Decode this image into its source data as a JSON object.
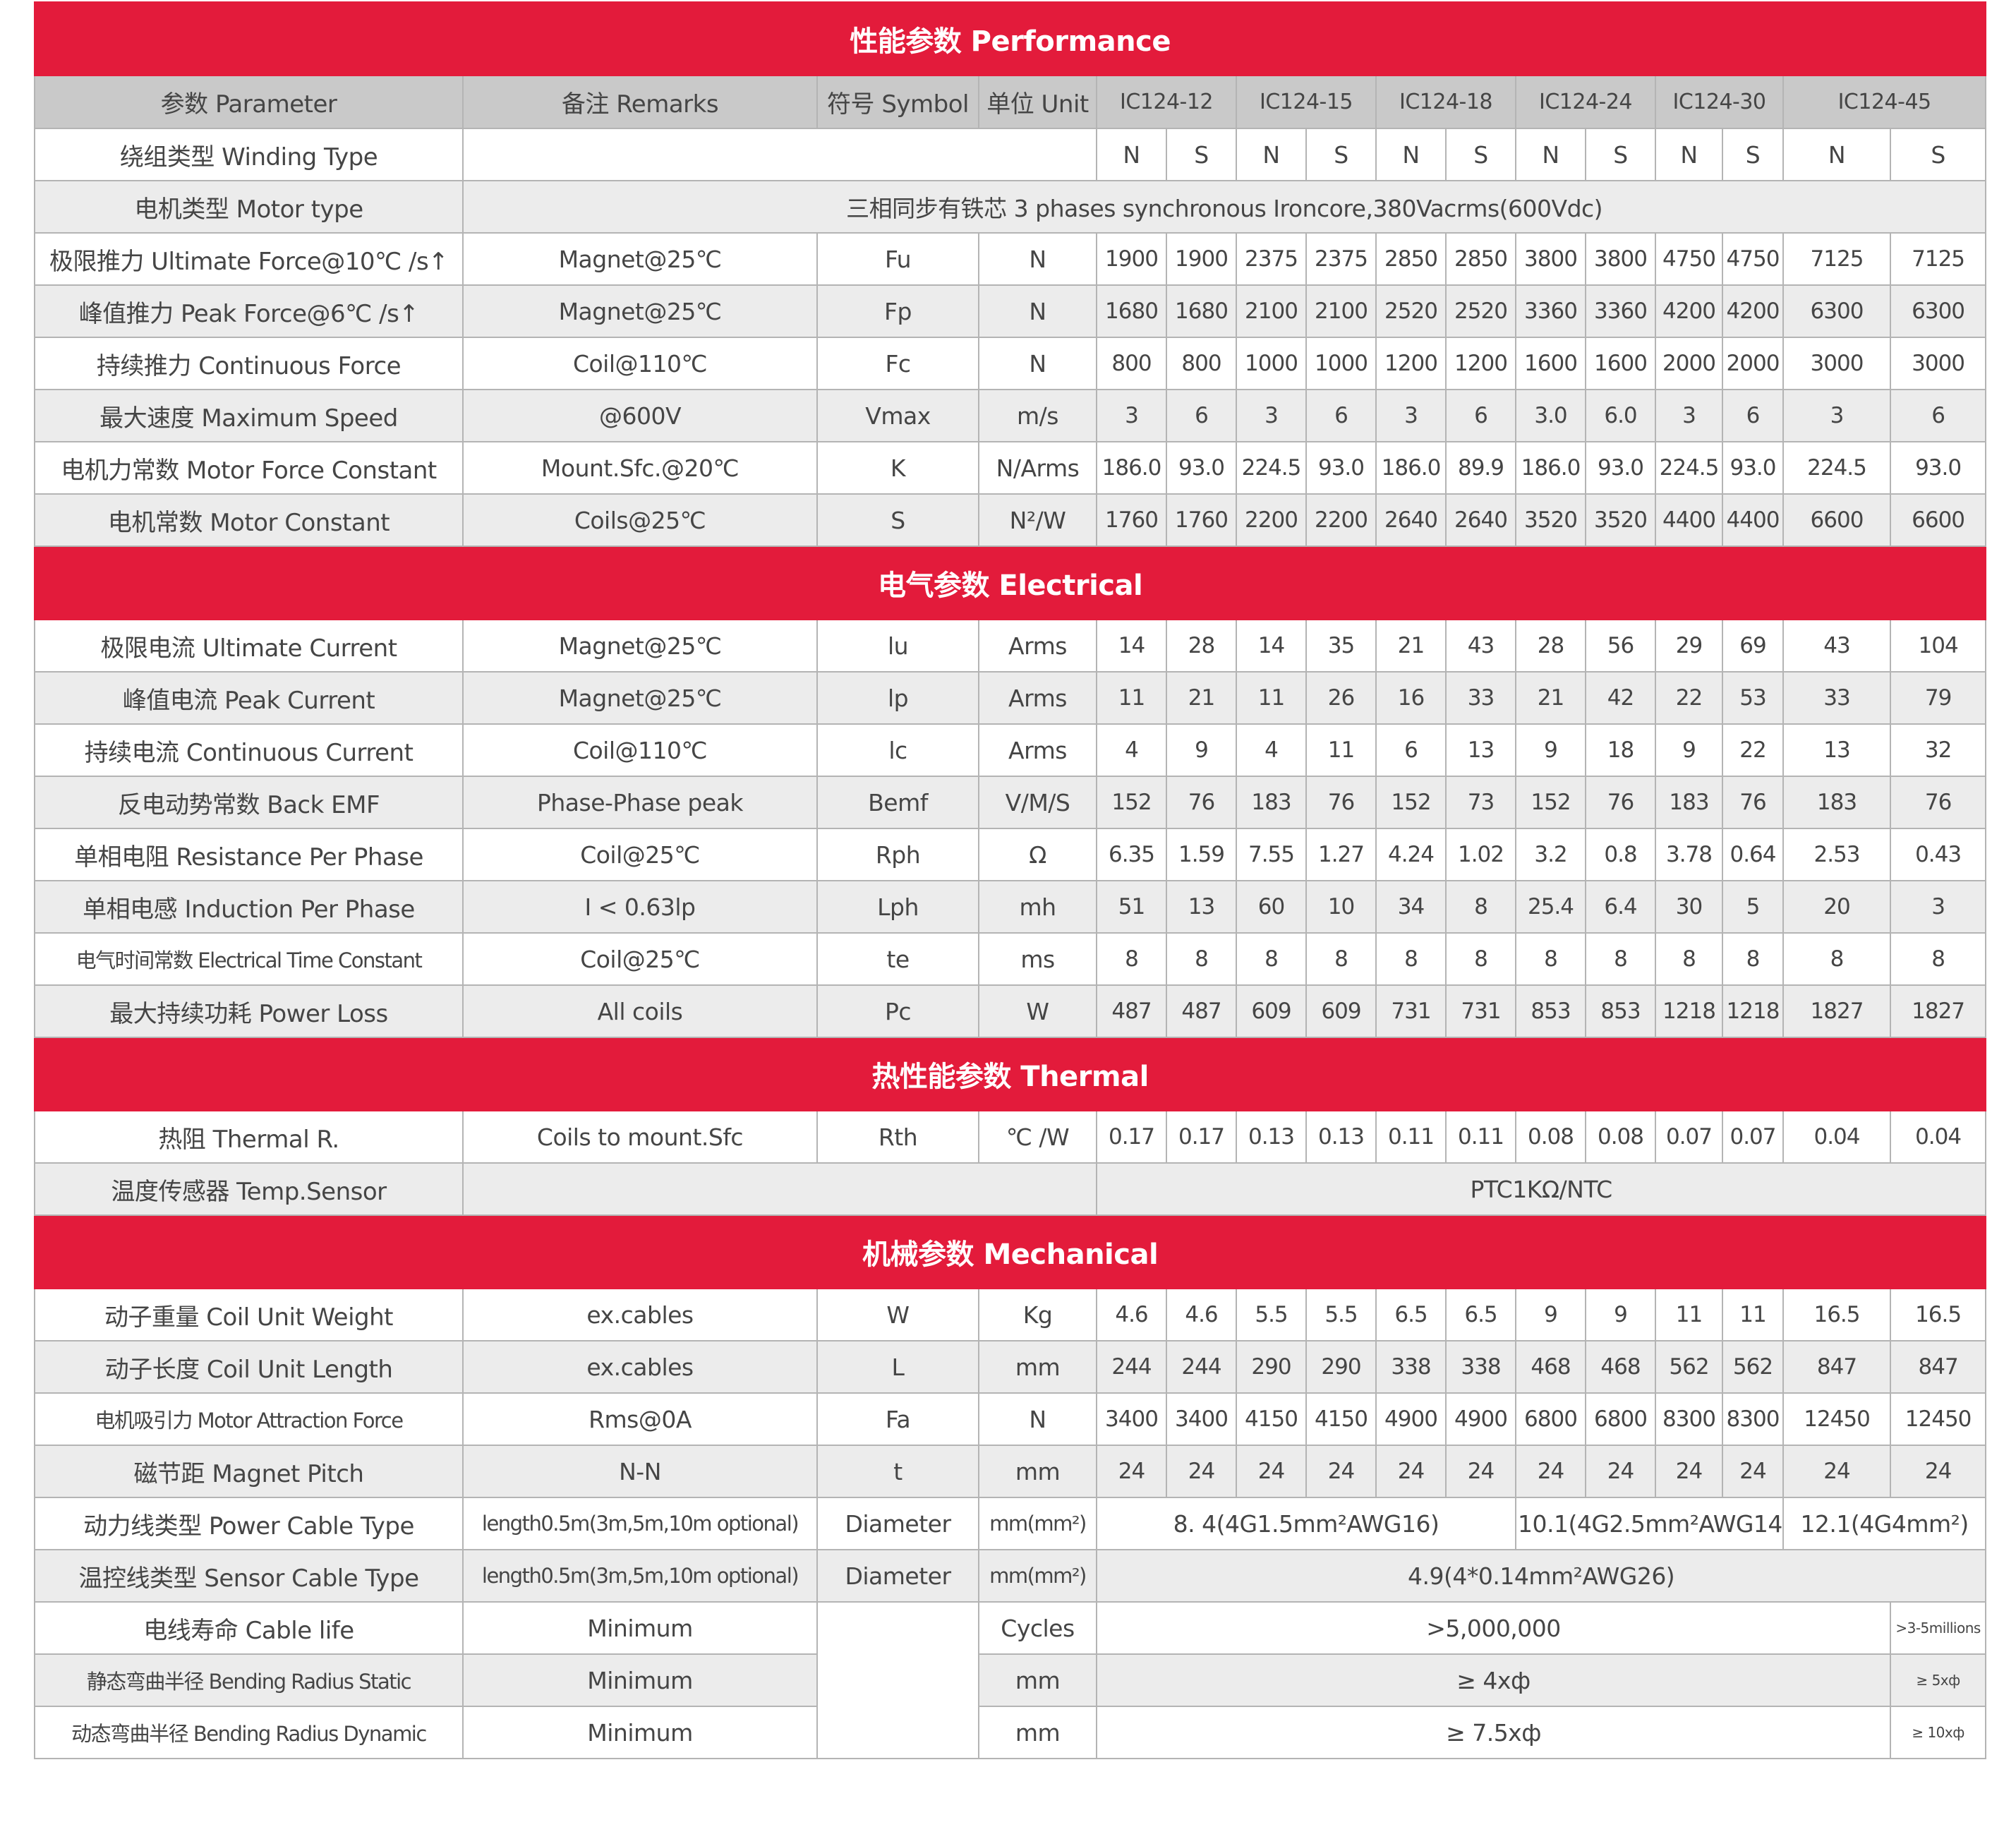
{
  "colors": {
    "section_bar": "#e31b3b",
    "header_bg": "#c9c9c9",
    "stripe_bg": "#ececec",
    "text": "#454545"
  },
  "header": {
    "labels": [
      "参数 Parameter",
      "备注 Remarks",
      "符号 Symbol",
      "单位 Unit"
    ],
    "models": [
      "IC124-12",
      "IC124-15",
      "IC124-18",
      "IC124-24",
      "IC124-30",
      "IC124-45"
    ]
  },
  "sections": [
    {
      "title": "性能参数 Performance",
      "rows": [
        [
          "绕组类型 Winding Type",
          "",
          "N",
          "S",
          "N",
          "S",
          "N",
          "S",
          "N",
          "S",
          "N",
          "S",
          "N",
          "S"
        ],
        [
          "电机类型 Motor type",
          "三相同步有铁芯 3 phases synchronous Ironcore,380Vacrms(600Vdc)"
        ],
        [
          "极限推力 Ultimate Force@10℃ /s↑",
          "Magnet@25℃",
          "Fu",
          "N",
          "1900",
          "1900",
          "2375",
          "2375",
          "2850",
          "2850",
          "3800",
          "3800",
          "4750",
          "4750",
          "7125",
          "7125"
        ],
        [
          "峰值推力 Peak Force@6℃ /s↑",
          "Magnet@25℃",
          "Fp",
          "N",
          "1680",
          "1680",
          "2100",
          "2100",
          "2520",
          "2520",
          "3360",
          "3360",
          "4200",
          "4200",
          "6300",
          "6300"
        ],
        [
          "持续推力 Continuous Force",
          "Coil@110℃",
          "Fc",
          "N",
          "800",
          "800",
          "1000",
          "1000",
          "1200",
          "1200",
          "1600",
          "1600",
          "2000",
          "2000",
          "3000",
          "3000"
        ],
        [
          "最大速度 Maximum Speed",
          "@600V",
          "Vmax",
          "m/s",
          "3",
          "6",
          "3",
          "6",
          "3",
          "6",
          "3.0",
          "6.0",
          "3",
          "6",
          "3",
          "6"
        ],
        [
          "电机力常数 Motor Force Constant",
          "Mount.Sfc.@20℃",
          "K",
          "N/Arms",
          "186.0",
          "93.0",
          "224.5",
          "93.0",
          "186.0",
          "89.9",
          "186.0",
          "93.0",
          "224.5",
          "93.0",
          "224.5",
          "93.0"
        ],
        [
          "电机常数 Motor Constant",
          "Coils@25℃",
          "S",
          "N²/W",
          "1760",
          "1760",
          "2200",
          "2200",
          "2640",
          "2640",
          "3520",
          "3520",
          "4400",
          "4400",
          "6600",
          "6600"
        ]
      ]
    },
    {
      "title": "电气参数 Electrical",
      "rows": [
        [
          "极限电流 Ultimate Current",
          "Magnet@25℃",
          "lu",
          "Arms",
          "14",
          "28",
          "14",
          "35",
          "21",
          "43",
          "28",
          "56",
          "29",
          "69",
          "43",
          "104"
        ],
        [
          "峰值电流 Peak Current",
          "Magnet@25℃",
          "lp",
          "Arms",
          "11",
          "21",
          "11",
          "26",
          "16",
          "33",
          "21",
          "42",
          "22",
          "53",
          "33",
          "79"
        ],
        [
          "持续电流 Continuous Current",
          "Coil@110℃",
          "lc",
          "Arms",
          "4",
          "9",
          "4",
          "11",
          "6",
          "13",
          "9",
          "18",
          "9",
          "22",
          "13",
          "32"
        ],
        [
          "反电动势常数 Back EMF",
          "Phase-Phase peak",
          "Bemf",
          "V/M/S",
          "152",
          "76",
          "183",
          "76",
          "152",
          "73",
          "152",
          "76",
          "183",
          "76",
          "183",
          "76"
        ],
        [
          "单相电阻 Resistance Per Phase",
          "Coil@25℃",
          "Rph",
          "Ω",
          "6.35",
          "1.59",
          "7.55",
          "1.27",
          "4.24",
          "1.02",
          "3.2",
          "0.8",
          "3.78",
          "0.64",
          "2.53",
          "0.43"
        ],
        [
          "单相电感 Induction Per Phase",
          "I < 0.63lp",
          "Lph",
          "mh",
          "51",
          "13",
          "60",
          "10",
          "34",
          "8",
          "25.4",
          "6.4",
          "30",
          "5",
          "20",
          "3"
        ],
        [
          "电气时间常数 Electrical Time Constant",
          "Coil@25℃",
          "te",
          "ms",
          "8",
          "8",
          "8",
          "8",
          "8",
          "8",
          "8",
          "8",
          "8",
          "8",
          "8",
          "8"
        ],
        [
          "最大持续功耗 Power Loss",
          "All coils",
          "Pc",
          "W",
          "487",
          "487",
          "609",
          "609",
          "731",
          "731",
          "853",
          "853",
          "1218",
          "1218",
          "1827",
          "1827"
        ]
      ]
    },
    {
      "title": "热性能参数 Thermal",
      "rows": [
        [
          "热阻 Thermal R.",
          "Coils to mount.Sfc",
          "Rth",
          "℃ /W",
          "0.17",
          "0.17",
          "0.13",
          "0.13",
          "0.11",
          "0.11",
          "0.08",
          "0.08",
          "0.07",
          "0.07",
          "0.04",
          "0.04"
        ],
        [
          "温度传感器 Temp.Sensor",
          "",
          "PTC1KΩ/NTC"
        ]
      ]
    },
    {
      "title": "机械参数  Mechanical",
      "rows": [
        [
          "动子重量 Coil Unit Weight",
          "ex.cables",
          "W",
          "Kg",
          "4.6",
          "4.6",
          "5.5",
          "5.5",
          "6.5",
          "6.5",
          "9",
          "9",
          "11",
          "11",
          "16.5",
          "16.5"
        ],
        [
          "动子长度 Coil Unit Length",
          "ex.cables",
          "L",
          "mm",
          "244",
          "244",
          "290",
          "290",
          "338",
          "338",
          "468",
          "468",
          "562",
          "562",
          "847",
          "847"
        ],
        [
          "电机吸引力 Motor Attraction Force",
          "Rms@0A",
          "Fa",
          "N",
          "3400",
          "3400",
          "4150",
          "4150",
          "4900",
          "4900",
          "6800",
          "6800",
          "8300",
          "8300",
          "12450",
          "12450"
        ],
        [
          "磁节距 Magnet Pitch",
          "N-N",
          "t",
          "mm",
          "24",
          "24",
          "24",
          "24",
          "24",
          "24",
          "24",
          "24",
          "24",
          "24",
          "24",
          "24"
        ],
        [
          "动力线类型 Power Cable Type",
          "length0.5m(3m,5m,10m optional)",
          "Diameter",
          "mm(mm²)",
          "8. 4(4G1.5mm²AWG16)",
          "10.1(4G2.5mm²AWG14)",
          "12.1(4G4mm²)"
        ],
        [
          "温控线类型 Sensor Cable Type",
          "length0.5m(3m,5m,10m optional)",
          "Diameter",
          "mm(mm²)",
          "4.9(4*0.14mm²AWG26)"
        ],
        [
          "电线寿命 Cable life",
          "Minimum",
          "",
          "Cycles",
          ">5,000,000",
          ">3-5millions"
        ],
        [
          "静态弯曲半径 Bending Radius Static",
          "Minimum",
          "mm",
          "≥ 4xф",
          "≥ 5xф"
        ],
        [
          "动态弯曲半径 Bending Radius Dynamic",
          "Minimum",
          "mm",
          "≥ 7.5xф",
          "≥ 10xф"
        ]
      ]
    }
  ]
}
